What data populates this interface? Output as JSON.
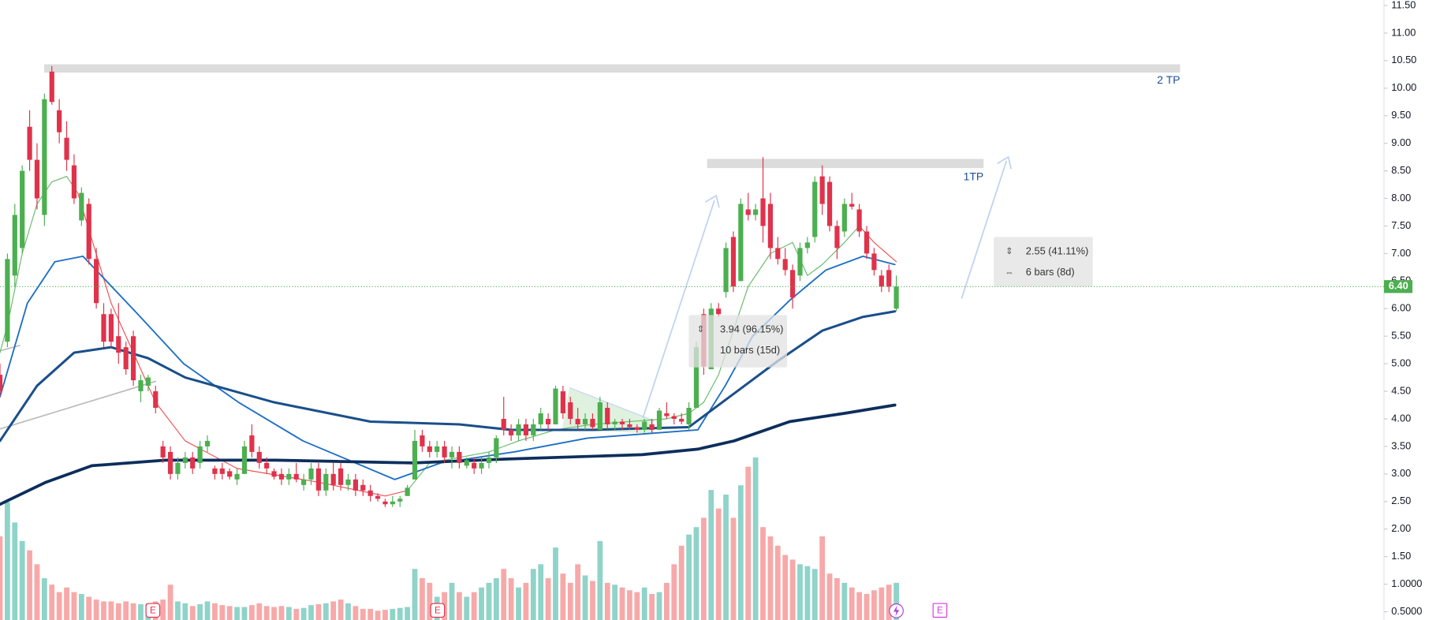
{
  "chart_data": {
    "type": "candlestick",
    "ylim": [
      0.35,
      11.6
    ],
    "yticks": [
      {
        "value": 11.5,
        "label": "11.50"
      },
      {
        "value": 11,
        "label": "11.00"
      },
      {
        "value": 10.5,
        "label": "10.50"
      },
      {
        "value": 10,
        "label": "10.00"
      },
      {
        "value": 9.5,
        "label": "9.50"
      },
      {
        "value": 9,
        "label": "9.00"
      },
      {
        "value": 8.5,
        "label": "8.50"
      },
      {
        "value": 8,
        "label": "8.00"
      },
      {
        "value": 7.5,
        "label": "7.50"
      },
      {
        "value": 7,
        "label": "7.00"
      },
      {
        "value": 6.5,
        "label": "6.50"
      },
      {
        "value": 6,
        "label": "6.00"
      },
      {
        "value": 5.5,
        "label": "5.50"
      },
      {
        "value": 5,
        "label": "5.00"
      },
      {
        "value": 4.5,
        "label": "4.50"
      },
      {
        "value": 4,
        "label": "4.00"
      },
      {
        "value": 3.5,
        "label": "3.50"
      },
      {
        "value": 3,
        "label": "3.00"
      },
      {
        "value": 2.5,
        "label": "2.50"
      },
      {
        "value": 2,
        "label": "2.00"
      },
      {
        "value": 1.5,
        "label": "1.50"
      },
      {
        "value": 1,
        "label": "1.0000"
      },
      {
        "value": 0.5,
        "label": "0.5000"
      }
    ],
    "up_color": "#4caf50",
    "down_color": "#e0324b",
    "volume_up_color": "#8fd3c9",
    "volume_down_color": "#f7a8a8",
    "candles": [
      [
        4.8,
        5.0,
        4.4,
        4.5
      ],
      [
        5.4,
        7.0,
        5.3,
        6.9
      ],
      [
        6.6,
        7.9,
        6.4,
        7.7
      ],
      [
        7.1,
        8.6,
        7.0,
        8.5
      ],
      [
        9.3,
        9.6,
        8.5,
        8.7
      ],
      [
        8.7,
        9.0,
        7.8,
        8.0
      ],
      [
        7.7,
        9.9,
        7.5,
        9.8
      ],
      [
        10.3,
        10.4,
        9.7,
        9.75
      ],
      [
        9.6,
        9.8,
        9.0,
        9.2
      ],
      [
        9.1,
        9.4,
        8.5,
        8.7
      ],
      [
        8.6,
        8.8,
        7.9,
        8.0
      ],
      [
        7.6,
        8.2,
        7.5,
        8.1
      ],
      [
        7.9,
        8.0,
        6.8,
        6.9
      ],
      [
        6.9,
        7.1,
        6.0,
        6.1
      ],
      [
        5.9,
        6.1,
        5.3,
        5.4
      ],
      [
        5.9,
        6.0,
        5.3,
        5.4
      ],
      [
        5.5,
        6.1,
        5.0,
        5.2
      ],
      [
        5.3,
        5.4,
        4.8,
        4.9
      ],
      [
        5.5,
        5.6,
        4.6,
        4.7
      ],
      [
        4.5,
        4.8,
        4.3,
        4.7
      ],
      [
        4.6,
        4.8,
        4.5,
        4.75
      ],
      [
        4.5,
        4.6,
        4.1,
        4.2
      ],
      [
        3.5,
        3.6,
        3.2,
        3.3
      ],
      [
        3.4,
        3.5,
        2.9,
        3.0
      ],
      [
        3.0,
        3.3,
        2.9,
        3.2
      ],
      [
        3.2,
        3.4,
        3.1,
        3.3
      ],
      [
        3.3,
        3.4,
        3.0,
        3.1
      ],
      [
        3.2,
        3.6,
        3.1,
        3.5
      ],
      [
        3.5,
        3.7,
        3.4,
        3.6
      ],
      [
        3.1,
        3.15,
        2.9,
        3.0
      ],
      [
        3.1,
        3.2,
        2.9,
        3.0
      ],
      [
        3.05,
        3.1,
        2.9,
        2.95
      ],
      [
        2.9,
        3.1,
        2.8,
        3.0
      ],
      [
        3.0,
        3.6,
        3.0,
        3.5
      ],
      [
        3.7,
        3.9,
        3.3,
        3.4
      ],
      [
        3.4,
        3.5,
        3.1,
        3.2
      ],
      [
        3.2,
        3.3,
        3.0,
        3.1
      ],
      [
        3.05,
        3.1,
        2.9,
        2.95
      ],
      [
        3.0,
        3.1,
        2.8,
        2.9
      ],
      [
        2.9,
        3.1,
        2.8,
        3.0
      ],
      [
        3.0,
        3.2,
        2.85,
        2.9
      ],
      [
        2.8,
        3.0,
        2.7,
        2.9
      ],
      [
        2.9,
        3.2,
        2.8,
        3.1
      ],
      [
        3.1,
        3.2,
        2.6,
        2.7
      ],
      [
        2.7,
        3.1,
        2.6,
        3.0
      ],
      [
        3.0,
        3.2,
        2.7,
        2.8
      ],
      [
        3.1,
        3.2,
        2.7,
        2.8
      ],
      [
        2.8,
        3.0,
        2.7,
        2.9
      ],
      [
        2.9,
        3.0,
        2.6,
        2.7
      ],
      [
        2.8,
        2.9,
        2.6,
        2.7
      ],
      [
        2.7,
        2.8,
        2.5,
        2.6
      ],
      [
        2.6,
        2.65,
        2.5,
        2.55
      ],
      [
        2.5,
        2.55,
        2.4,
        2.45
      ],
      [
        2.45,
        2.6,
        2.4,
        2.5
      ],
      [
        2.5,
        2.6,
        2.4,
        2.55
      ],
      [
        2.6,
        2.8,
        2.6,
        2.75
      ],
      [
        2.9,
        3.8,
        2.9,
        3.6
      ],
      [
        3.7,
        3.8,
        3.4,
        3.5
      ],
      [
        3.5,
        3.6,
        3.3,
        3.4
      ],
      [
        3.4,
        3.6,
        3.3,
        3.5
      ],
      [
        3.5,
        3.6,
        3.2,
        3.3
      ],
      [
        3.3,
        3.5,
        3.1,
        3.4
      ],
      [
        3.4,
        3.5,
        3.1,
        3.2
      ],
      [
        3.15,
        3.3,
        3.1,
        3.25
      ],
      [
        3.2,
        3.3,
        3.0,
        3.1
      ],
      [
        3.1,
        3.3,
        3.0,
        3.2
      ],
      [
        3.2,
        3.4,
        3.1,
        3.3
      ],
      [
        3.3,
        3.7,
        3.2,
        3.65
      ],
      [
        4.0,
        4.4,
        3.7,
        3.8
      ],
      [
        3.8,
        3.9,
        3.6,
        3.7
      ],
      [
        3.7,
        4.0,
        3.6,
        3.9
      ],
      [
        3.9,
        4.0,
        3.6,
        3.7
      ],
      [
        3.7,
        4.0,
        3.6,
        3.9
      ],
      [
        3.9,
        4.2,
        3.8,
        4.1
      ],
      [
        4.0,
        4.1,
        3.8,
        3.9
      ],
      [
        3.9,
        4.6,
        3.9,
        4.55
      ],
      [
        4.5,
        4.6,
        4.0,
        4.1
      ],
      [
        4.3,
        4.4,
        3.9,
        4.0
      ],
      [
        4.0,
        4.2,
        3.8,
        3.9
      ],
      [
        3.9,
        4.1,
        3.8,
        4.0
      ],
      [
        4.0,
        4.1,
        3.8,
        3.85
      ],
      [
        3.8,
        4.4,
        3.8,
        4.3
      ],
      [
        4.2,
        4.3,
        3.8,
        3.9
      ],
      [
        3.9,
        4.0,
        3.8,
        3.95
      ],
      [
        3.95,
        4.0,
        3.8,
        3.9
      ],
      [
        3.9,
        4.0,
        3.8,
        3.85
      ],
      [
        3.85,
        3.9,
        3.75,
        3.8
      ],
      [
        3.8,
        4.0,
        3.75,
        3.95
      ],
      [
        3.9,
        4.0,
        3.75,
        3.8
      ],
      [
        3.8,
        4.2,
        3.8,
        4.15
      ],
      [
        4.1,
        4.3,
        4.0,
        4.05
      ],
      [
        4.05,
        4.1,
        3.9,
        4.0
      ],
      [
        4.0,
        4.1,
        3.9,
        3.95
      ],
      [
        3.9,
        4.3,
        3.8,
        4.2
      ],
      [
        4.2,
        5.4,
        4.2,
        5.3
      ],
      [
        5.9,
        6.0,
        4.8,
        4.95
      ],
      [
        4.9,
        6.1,
        4.9,
        6.0
      ],
      [
        6.0,
        6.1,
        5.85,
        5.9
      ],
      [
        6.3,
        7.2,
        6.2,
        7.1
      ],
      [
        7.3,
        7.4,
        6.3,
        6.4
      ],
      [
        6.5,
        8.0,
        6.5,
        7.9
      ],
      [
        7.8,
        8.1,
        7.6,
        7.7
      ],
      [
        7.7,
        7.9,
        7.6,
        7.8
      ],
      [
        8.0,
        8.75,
        7.2,
        7.5
      ],
      [
        7.9,
        8.1,
        6.9,
        7.1
      ],
      [
        7.1,
        7.3,
        6.8,
        6.9
      ],
      [
        6.9,
        7.1,
        6.6,
        6.7
      ],
      [
        6.7,
        6.8,
        6.0,
        6.2
      ],
      [
        6.6,
        7.2,
        6.5,
        7.1
      ],
      [
        7.1,
        7.3,
        7.0,
        7.2
      ],
      [
        7.3,
        8.4,
        7.2,
        8.3
      ],
      [
        8.4,
        8.6,
        7.7,
        7.9
      ],
      [
        8.3,
        8.4,
        7.4,
        7.5
      ],
      [
        7.5,
        7.6,
        6.9,
        7.1
      ],
      [
        7.4,
        8.0,
        7.3,
        7.9
      ],
      [
        7.9,
        8.1,
        7.8,
        7.85
      ],
      [
        7.8,
        7.9,
        7.3,
        7.4
      ],
      [
        7.4,
        7.5,
        6.9,
        7.0
      ],
      [
        7.0,
        7.1,
        6.6,
        6.7
      ],
      [
        6.6,
        6.7,
        6.3,
        6.4
      ],
      [
        6.7,
        6.8,
        6.3,
        6.4
      ],
      [
        6.0,
        6.6,
        5.95,
        6.4
      ]
    ],
    "volume": [
      90,
      127,
      105,
      85,
      75,
      60,
      45,
      38,
      30,
      35,
      30,
      28,
      25,
      22,
      20,
      20,
      18,
      20,
      18,
      17,
      18,
      20,
      22,
      38,
      20,
      18,
      15,
      17,
      20,
      18,
      16,
      15,
      14,
      14,
      16,
      18,
      15,
      14,
      15,
      14,
      12,
      13,
      16,
      17,
      18,
      20,
      22,
      18,
      15,
      12,
      12,
      10,
      11,
      12,
      13,
      14,
      55,
      45,
      40,
      25,
      30,
      40,
      30,
      25,
      30,
      35,
      40,
      45,
      55,
      45,
      35,
      40,
      55,
      60,
      45,
      78,
      50,
      40,
      60,
      48,
      42,
      85,
      40,
      38,
      35,
      32,
      30,
      35,
      28,
      30,
      40,
      60,
      80,
      92,
      100,
      110,
      140,
      120,
      135,
      110,
      145,
      165,
      175,
      100,
      90,
      80,
      70,
      65,
      60,
      58,
      55,
      90,
      50,
      45,
      40,
      35,
      30,
      28,
      32,
      35,
      38,
      40
    ],
    "lines": [
      {
        "color": "#66bb6a",
        "width": 1,
        "x": [
          0,
          1,
          3,
          5,
          7,
          9,
          10.5
        ],
        "values": [
          5.2,
          5.7,
          7.0,
          7.9,
          8.3,
          8.4,
          8.1
        ]
      },
      {
        "color": "#ef5350",
        "width": 1,
        "x": [
          10.5,
          15,
          21,
          25,
          32,
          43,
          52,
          55
        ],
        "values": [
          8.1,
          6.1,
          4.3,
          3.6,
          3.1,
          2.85,
          2.6,
          2.7
        ]
      },
      {
        "color": "#66bb6a",
        "width": 1,
        "x": [
          55,
          58,
          62,
          66,
          70,
          75,
          80,
          85,
          90,
          93,
          95,
          97,
          99,
          101,
          104,
          107,
          109,
          111,
          114,
          116
        ],
        "values": [
          2.7,
          3.2,
          3.3,
          3.4,
          3.6,
          3.8,
          3.9,
          3.95,
          4.0,
          4.1,
          4.3,
          4.8,
          5.6,
          6.4,
          7.0,
          7.2,
          6.6,
          6.8,
          7.2,
          7.5
        ]
      },
      {
        "color": "#ef5350",
        "width": 1,
        "x": [
          116,
          118,
          121
        ],
        "values": [
          7.5,
          7.2,
          6.85
        ]
      },
      {
        "color": "#1e6fc5",
        "width": 1.6,
        "x": [
          0,
          3.7,
          7.4,
          11.2,
          18.6,
          24.8,
          32.2,
          40.9,
          53.3,
          59.5,
          69.4,
          79.3,
          94.2,
          97.9,
          101.6,
          106.6,
          111.5,
          116.5,
          120.8
        ],
        "values": [
          4.4,
          6.1,
          6.85,
          6.95,
          5.9,
          5.0,
          4.3,
          3.6,
          2.9,
          3.2,
          3.4,
          3.65,
          3.8,
          4.6,
          5.5,
          6.15,
          6.7,
          6.95,
          6.8
        ]
      },
      {
        "color": "#1a4f8a",
        "width": 2.6,
        "x": [
          0,
          5,
          10,
          15,
          20,
          25,
          37,
          50,
          62,
          69,
          80,
          93,
          99,
          105,
          111,
          116.5,
          120.8
        ],
        "values": [
          3.6,
          4.6,
          5.2,
          5.3,
          5.1,
          4.75,
          4.3,
          3.95,
          3.9,
          3.8,
          3.8,
          3.85,
          4.45,
          5.05,
          5.6,
          5.85,
          5.95
        ]
      },
      {
        "color": "#0d2e5c",
        "width": 3.2,
        "x": [
          0,
          6.2,
          12.4,
          22.3,
          37.2,
          55.8,
          68.2,
          86.7,
          94.2,
          99.1,
          106.6,
          114,
          120.8
        ],
        "values": [
          2.45,
          2.85,
          3.15,
          3.25,
          3.25,
          3.2,
          3.27,
          3.35,
          3.45,
          3.6,
          3.95,
          4.1,
          4.25
        ]
      }
    ],
    "last_price": {
      "value": 6.4,
      "label": "6.40"
    },
    "annotations": {
      "target_2": "2 TP",
      "target_1": "1TP",
      "measure_1": [
        "3.94 (96.15%)",
        "10 bars (15d)"
      ],
      "measure_2": [
        "2.55 (41.11%)",
        "6 bars (8d)"
      ]
    },
    "events": [
      "E",
      "E",
      "E"
    ]
  }
}
